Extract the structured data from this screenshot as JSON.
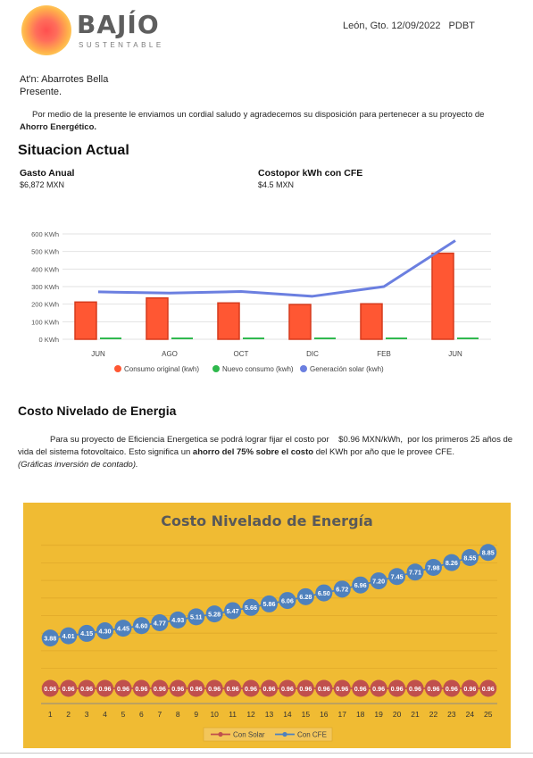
{
  "header": {
    "logo_name": "BAJÍO",
    "logo_tagline": "SUSTENTABLE",
    "place_date": "León, Gto. 12/09/2022",
    "code": "PDBT"
  },
  "letter": {
    "attn": "At'n: Abarrotes Bella",
    "greeting": "Presente.",
    "intro_text": "Por medio de la presente le enviamos un cordial saludo y agradecemos su disposición para pertenecer a su proyecto de ",
    "intro_bold": "Ahorro Energético."
  },
  "situacion": {
    "title": "Situacion Actual",
    "gasto_label": "Gasto Anual",
    "gasto_value": "$6,872 MXN",
    "costo_label": "Costopor kWh con CFE",
    "costo_value": "$4.5 MXN"
  },
  "costo_section": {
    "title": "Costo Nivelado de Energia",
    "p1": "Para su proyecto de Eficiencia Energetica se podrá lograr fijar el costo por",
    "p_price": "$0.96 MXN/kWh,",
    "p2": "por los primeros 25 años de vida del sistema fotovoltaico. Esto significa un",
    "p_bold": "ahorro del 75% sobre el costo",
    "p3": "del KWh por año que le provee CFE.",
    "p_italic": "(Gráficas inversión de contado)."
  },
  "chart_data": [
    {
      "type": "bar",
      "categories": [
        "JUN",
        "AGO",
        "OCT",
        "DIC",
        "FEB",
        "JUN"
      ],
      "series": [
        {
          "name": "Consumo original (kwh)",
          "type": "bar",
          "color": "#ff5733",
          "values": [
            212,
            235,
            207,
            198,
            202,
            490
          ]
        },
        {
          "name": "Nuevo consumo (kwh)",
          "type": "bar",
          "color": "#2eb84c",
          "values": [
            10,
            10,
            10,
            10,
            10,
            10
          ]
        },
        {
          "name": "Generación solar (kwh)",
          "type": "line",
          "color": "#6b7fe0",
          "values": [
            270,
            263,
            272,
            245,
            300,
            562
          ]
        }
      ],
      "yticks": [
        "0 KWh",
        "100 KWh",
        "200 KWh",
        "300 KWh",
        "400 KWh",
        "500 KWh",
        "600 KWh"
      ],
      "ylim": [
        0,
        600
      ],
      "grid": true,
      "legend": "bottom"
    },
    {
      "type": "line",
      "title": "Costo Nivelado de Energía",
      "background": "#f0bb33",
      "categories": [
        "1",
        "2",
        "3",
        "4",
        "5",
        "6",
        "7",
        "8",
        "9",
        "10",
        "11",
        "12",
        "13",
        "14",
        "15",
        "16",
        "17",
        "18",
        "19",
        "20",
        "21",
        "22",
        "23",
        "24",
        "25"
      ],
      "series": [
        {
          "name": "Con Solar",
          "color": "#c0504d",
          "values": [
            0.96,
            0.96,
            0.96,
            0.96,
            0.96,
            0.96,
            0.96,
            0.96,
            0.96,
            0.96,
            0.96,
            0.96,
            0.96,
            0.96,
            0.96,
            0.96,
            0.96,
            0.96,
            0.96,
            0.96,
            0.96,
            0.96,
            0.96,
            0.96,
            0.96
          ]
        },
        {
          "name": "Con CFE",
          "color": "#4f81bd",
          "values": [
            3.88,
            4.01,
            4.15,
            4.3,
            4.45,
            4.6,
            4.77,
            4.93,
            5.11,
            5.28,
            5.47,
            5.66,
            5.86,
            6.06,
            6.28,
            6.5,
            6.72,
            6.96,
            7.2,
            7.45,
            7.71,
            7.98,
            8.26,
            8.55,
            8.85
          ]
        }
      ],
      "data_labels": true,
      "legend": "bottom",
      "grid": true
    }
  ]
}
